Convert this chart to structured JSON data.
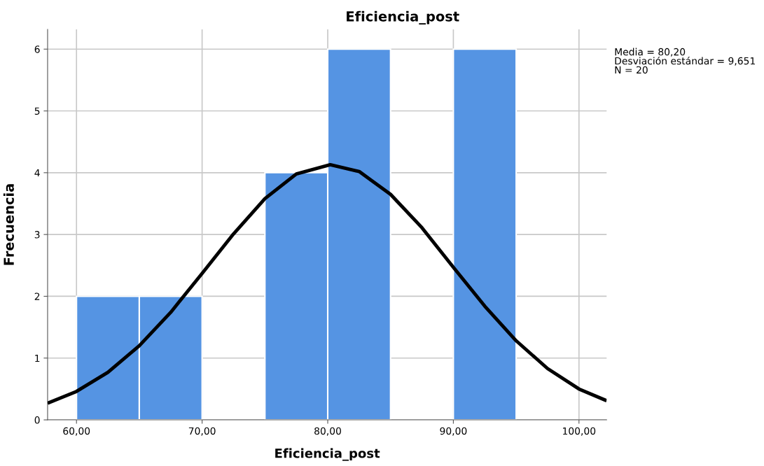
{
  "chart_data": {
    "type": "histogram",
    "title": "Eficiencia_post",
    "xlabel": "Eficiencia_post",
    "ylabel": "Frecuencia",
    "bins": [
      60,
      65,
      70,
      75,
      80,
      85,
      90,
      95
    ],
    "values": [
      2,
      2,
      0,
      4,
      6,
      0,
      6
    ],
    "color": "#5594e3",
    "series": [
      {
        "type": "line",
        "color": "#000000",
        "x": [
          57.7,
          60,
          62.5,
          65,
          67.5,
          70,
          72.5,
          75,
          77.5,
          80.2,
          82.5,
          85,
          87.5,
          90,
          92.5,
          95,
          97.5,
          100,
          102.2
        ],
        "values": [
          0.27,
          0.46,
          0.77,
          1.2,
          1.74,
          2.37,
          3.01,
          3.58,
          3.98,
          4.13,
          4.02,
          3.65,
          3.11,
          2.47,
          1.84,
          1.28,
          0.83,
          0.5,
          0.31
        ]
      }
    ],
    "xlim": [
      57.7,
      102.2
    ],
    "xticks": [
      {
        "value": 60,
        "label": "60,00"
      },
      {
        "value": 70,
        "label": "70,00"
      },
      {
        "value": 80,
        "label": "80,00"
      },
      {
        "value": 90,
        "label": "90,00"
      },
      {
        "value": 100,
        "label": "100,00"
      }
    ],
    "ylim": [
      0,
      6.32
    ],
    "yticks": [
      0,
      1,
      2,
      3,
      4,
      5,
      6
    ],
    "grid": true,
    "annotations": [
      "Media = 80,20",
      "Desviación estándar = 9,651",
      "N = 20"
    ]
  }
}
